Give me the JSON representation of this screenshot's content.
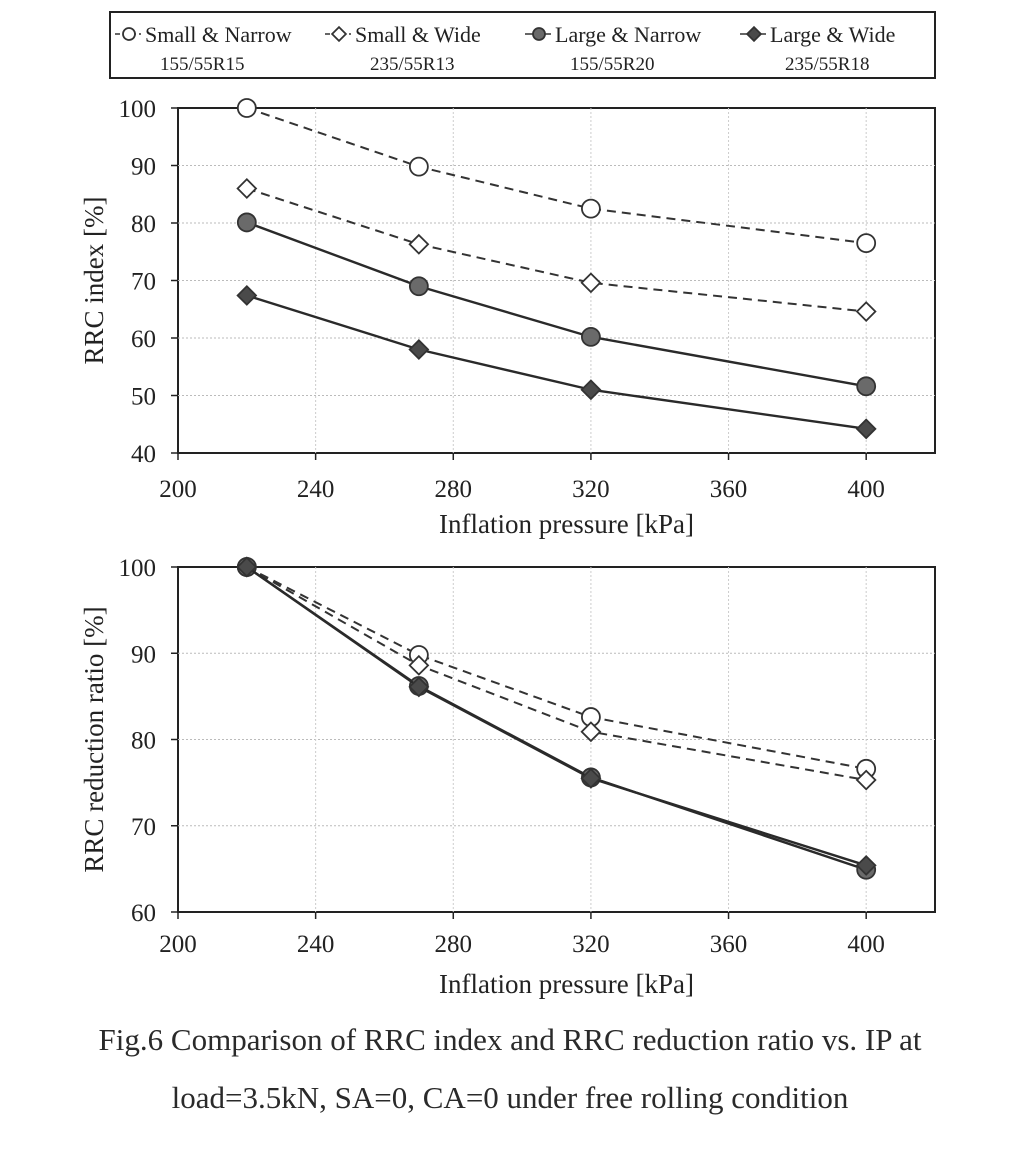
{
  "legend": {
    "entries": [
      {
        "name": "Small & Narrow",
        "size": "155/55R15",
        "marker": "circle",
        "fill": "#ffffff",
        "dash": true
      },
      {
        "name": "Small & Wide",
        "size": "235/55R13",
        "marker": "diamond",
        "fill": "#ffffff",
        "dash": true
      },
      {
        "name": "Large & Narrow",
        "size": "155/55R20",
        "marker": "circle",
        "fill": "#6a6a6a",
        "dash": false
      },
      {
        "name": "Large & Wide",
        "size": "235/55R18",
        "marker": "diamond",
        "fill": "#4a4a4a",
        "dash": false
      }
    ]
  },
  "chart_data": [
    {
      "type": "line",
      "xlabel": "Inflation pressure  [kPa]",
      "ylabel": "RRC index  [%]",
      "xlim": [
        200,
        420
      ],
      "ylim": [
        40,
        100
      ],
      "xticks": [
        200,
        240,
        280,
        320,
        360,
        400
      ],
      "yticks": [
        40,
        50,
        60,
        70,
        80,
        90,
        100
      ],
      "grid": true,
      "x": [
        220,
        270,
        320,
        400
      ],
      "series": [
        {
          "name": "Small & Narrow",
          "values": [
            100,
            89.8,
            82.5,
            76.5
          ]
        },
        {
          "name": "Small & Wide",
          "values": [
            86,
            76.3,
            69.6,
            64.6
          ]
        },
        {
          "name": "Large & Narrow",
          "values": [
            80.1,
            69,
            60.2,
            51.6
          ]
        },
        {
          "name": "Large & Wide",
          "values": [
            67.4,
            58,
            51,
            44.2
          ]
        }
      ]
    },
    {
      "type": "line",
      "xlabel": "Inflation pressure  [kPa]",
      "ylabel": "RRC reduction  ratio  [%]",
      "xlim": [
        200,
        420
      ],
      "ylim": [
        60,
        100
      ],
      "xticks": [
        200,
        240,
        280,
        320,
        360,
        400
      ],
      "yticks": [
        60,
        70,
        80,
        90,
        100
      ],
      "grid": true,
      "x": [
        220,
        270,
        320,
        400
      ],
      "series": [
        {
          "name": "Small & Narrow",
          "values": [
            100,
            89.8,
            82.6,
            76.6
          ]
        },
        {
          "name": "Small & Wide",
          "values": [
            100,
            88.6,
            80.9,
            75.3
          ]
        },
        {
          "name": "Large & Narrow",
          "values": [
            100,
            86.2,
            75.6,
            64.9
          ]
        },
        {
          "name": "Large & Wide",
          "values": [
            100,
            86.1,
            75.5,
            65.4
          ]
        }
      ]
    }
  ],
  "caption": {
    "line1": "Fig.6 Comparison of RRC index and RRC reduction ratio vs. IP at",
    "line2": "load=3.5kN, SA=0, CA=0 under free rolling condition"
  }
}
